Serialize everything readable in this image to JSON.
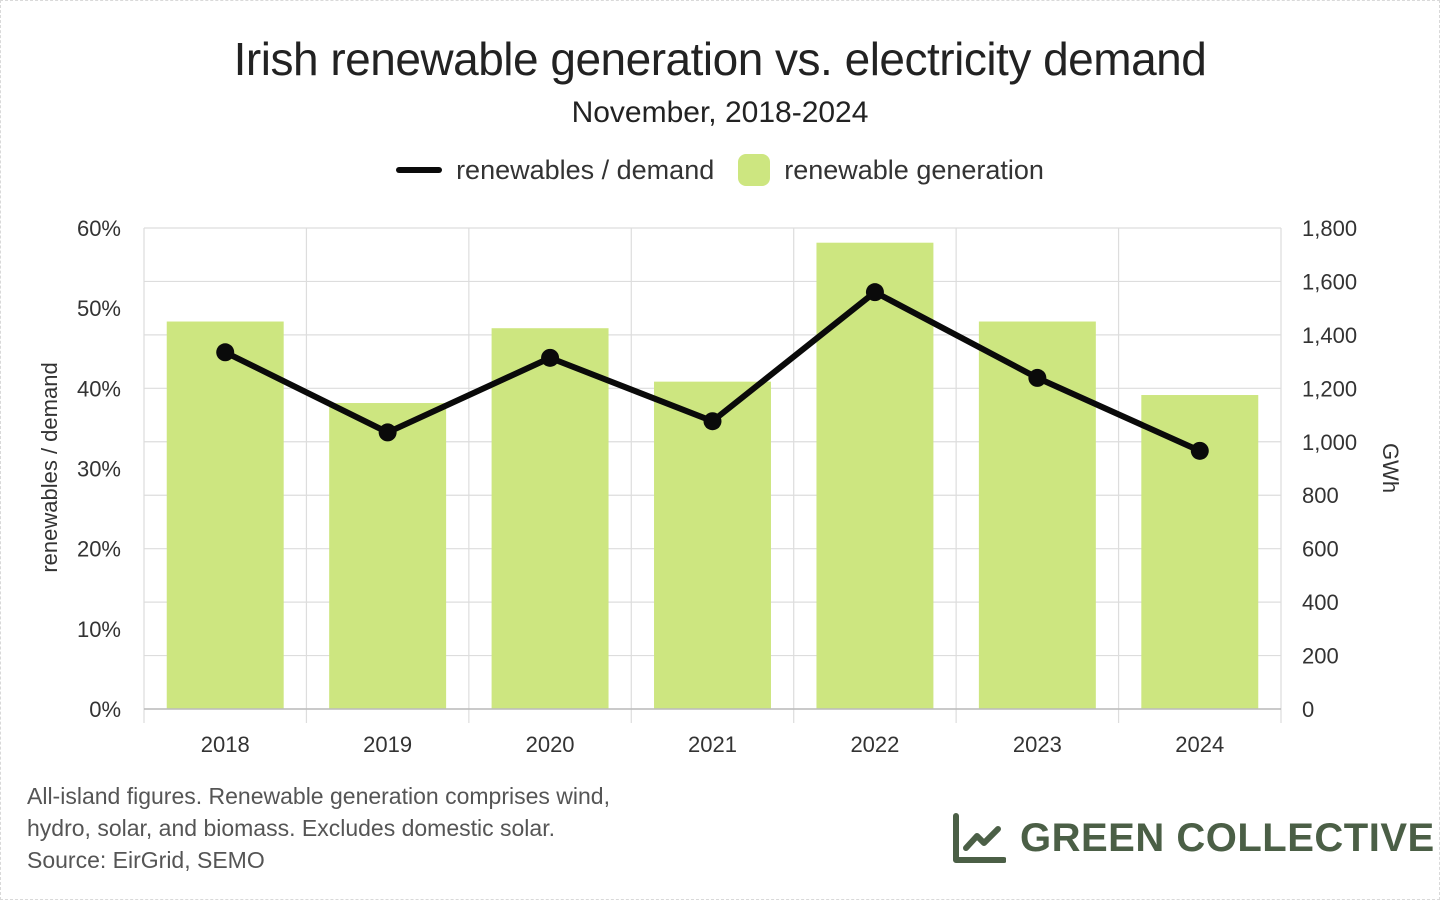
{
  "header": {
    "title": "Irish renewable generation vs. electricity demand",
    "subtitle": "November, 2018-2024"
  },
  "legend": {
    "line_label": "renewables / demand",
    "bar_label": "renewable generation"
  },
  "footnote": {
    "line1": "All-island figures. Renewable generation comprises wind,",
    "line2": "hydro, solar, and biomass. Excludes domestic solar.",
    "line3": "Source: EirGrid, SEMO"
  },
  "brand": {
    "name": "GREEN COLLECTIVE",
    "icon": "line-chart-logo-icon"
  },
  "colors": {
    "bar": "#cde680",
    "line": "#0a0a0a",
    "grid": "#dddddd",
    "brand": "#4b5f46"
  },
  "chart_data": {
    "type": "bar",
    "categories": [
      "2018",
      "2019",
      "2020",
      "2021",
      "2022",
      "2023",
      "2024"
    ],
    "series": [
      {
        "name": "renewable generation",
        "type": "bar",
        "axis": "right",
        "values": [
          1450,
          1145,
          1425,
          1225,
          1745,
          1450,
          1175
        ]
      },
      {
        "name": "renewables / demand",
        "type": "line",
        "axis": "left",
        "values": [
          44.5,
          34.5,
          43.8,
          35.9,
          52.0,
          41.3,
          32.2
        ]
      }
    ],
    "y_left": {
      "label": "renewables / demand",
      "min": 0,
      "max": 60,
      "ticks": [
        "0%",
        "10%",
        "20%",
        "30%",
        "40%",
        "50%",
        "60%"
      ]
    },
    "y_right": {
      "label": "GWh",
      "min": 0,
      "max": 1800,
      "ticks": [
        "0",
        "200",
        "400",
        "600",
        "800",
        "1,000",
        "1,200",
        "1,400",
        "1,600",
        "1,800"
      ]
    },
    "grid": true,
    "legend_position": "top"
  }
}
